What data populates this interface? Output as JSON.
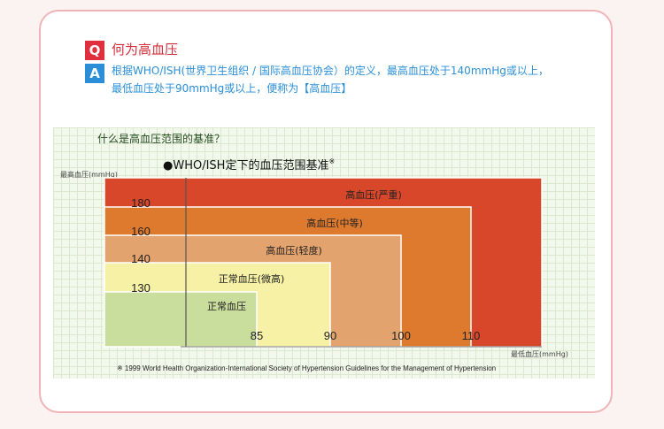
{
  "qa": {
    "q_badge": "Q",
    "question": "何为高血压",
    "a_badge": "A",
    "answer_lines": [
      "根据WHO/ISH(世界卫生组织 / 国际高血压协会）的定义，最高血压处于140mmHg或以上，",
      "最低血压处于90mmHg或以上，便称为【高血压】"
    ]
  },
  "colors": {
    "q_badge": "#e0303d",
    "a_badge": "#2a8fd8",
    "card_border": "#efb3b8"
  },
  "chart_data": {
    "type": "heatmap",
    "title": "什么是高血压范围的基准？",
    "subtitle": "●WHO/ISH定下的血压范围基准",
    "subtitle_mark": "※",
    "ylabel": "最高血压(mmHg)",
    "xlabel": "最低血压(mmHg)",
    "y_ticks": [
      130,
      140,
      160,
      180
    ],
    "x_ticks": [
      85,
      90,
      100,
      110
    ],
    "grid": true,
    "categories": [
      {
        "name": "高血压(严重)",
        "diastolic_min": 110,
        "systolic_min": 180,
        "color": "#d9472b"
      },
      {
        "name": "高血压(中等)",
        "diastolic_min": 100,
        "systolic_min": 160,
        "color": "#dd7a2e"
      },
      {
        "name": "高血压(轻度)",
        "diastolic_min": 90,
        "systolic_min": 140,
        "color": "#e3a36e"
      },
      {
        "name": "正常血压(微高)",
        "diastolic_min": 85,
        "systolic_min": 130,
        "color": "#f6f1a4"
      },
      {
        "name": "正常血压",
        "diastolic_min": 0,
        "systolic_min": 0,
        "color": "#c9dd9c"
      }
    ],
    "footnote": "※ 1999 World Health Organization-International Society of Hypertension Guidelines for the Management of Hypertension"
  }
}
